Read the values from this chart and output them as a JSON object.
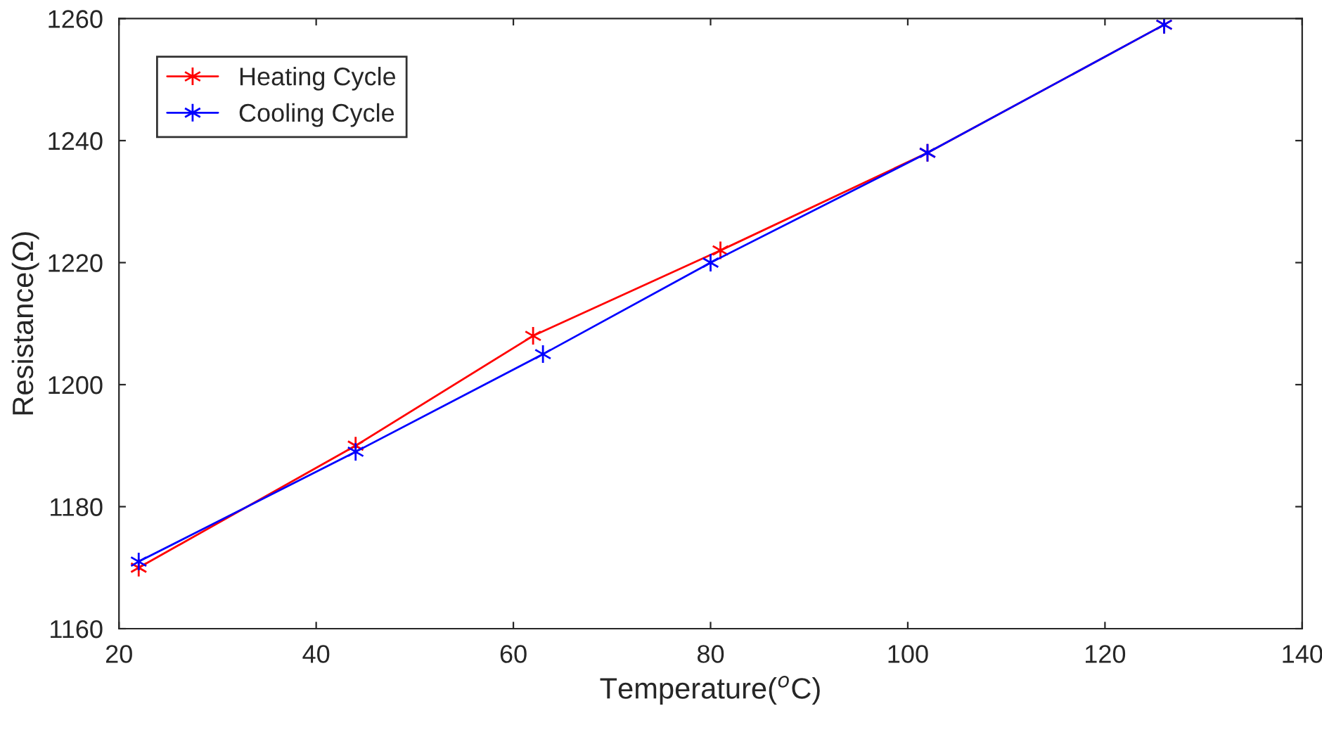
{
  "chart_data": {
    "type": "line",
    "xlabel": "Temperature($^{o}$C)",
    "ylabel": "Resistance(Ω)",
    "series": [
      {
        "name": "Heating Cycle",
        "color": "#ff0000",
        "x": [
          22,
          44,
          62,
          81,
          102,
          126
        ],
        "values": [
          1170,
          1190,
          1208,
          1222,
          1238,
          1259
        ]
      },
      {
        "name": "Cooling Cycle",
        "color": "#0000ff",
        "x": [
          22,
          44,
          63,
          80,
          102,
          126
        ],
        "values": [
          1171,
          1189,
          1205,
          1220,
          1238,
          1259
        ]
      }
    ],
    "xlim": [
      20,
      140
    ],
    "xticks": [
      20,
      40,
      60,
      80,
      100,
      120,
      140
    ],
    "ylim": [
      1160,
      1260
    ],
    "yticks": [
      1160,
      1180,
      1200,
      1220,
      1240,
      1260
    ],
    "grid": false,
    "legend": "top left",
    "marker": "cross",
    "line_style": "solid"
  }
}
